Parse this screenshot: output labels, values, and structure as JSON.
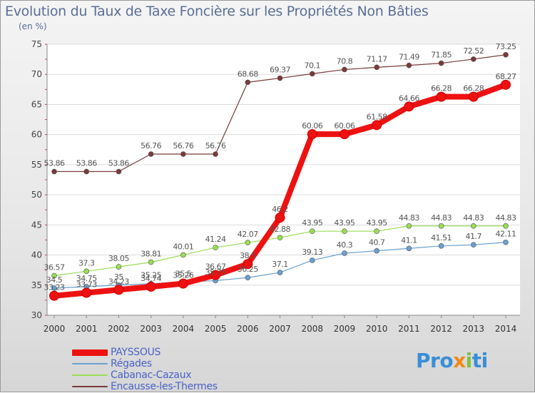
{
  "chart_data": {
    "type": "line",
    "title": "Evolution du Taux de Taxe Foncière sur les Propriétés Non Bâties",
    "subtitle": "(en %)",
    "xlabel": "",
    "ylabel": "",
    "ylim": [
      30,
      75
    ],
    "yticks": [
      30,
      35,
      40,
      45,
      50,
      55,
      60,
      65,
      70,
      75
    ],
    "categories": [
      "2000",
      "2001",
      "2002",
      "2003",
      "2004",
      "2005",
      "2006",
      "2007",
      "2008",
      "2009",
      "2010",
      "2011",
      "2012",
      "2013",
      "2014"
    ],
    "series": [
      {
        "name": "PAYSSOUS",
        "color": "#ee1111",
        "values": [
          33.23,
          33.73,
          34.23,
          34.74,
          35.26,
          36.67,
          38.5,
          46.2,
          60.06,
          60.06,
          61.58,
          64.66,
          66.28,
          66.28,
          68.27
        ],
        "labels": [
          "33.23",
          "33.73",
          "34.23",
          "34.74",
          "35.26",
          "36.67",
          "38.5",
          "46.2",
          "60.06",
          "60.06",
          "61.58",
          "64.66",
          "66.28",
          "66.28",
          "68.27"
        ]
      },
      {
        "name": "Régades",
        "color": "#6aa0d0",
        "values": [
          34.5,
          34.75,
          35.0,
          35.25,
          35.5,
          35.75,
          36.25,
          37.1,
          39.13,
          40.3,
          40.7,
          41.1,
          41.51,
          41.7,
          42.11
        ],
        "labels": [
          "34.5",
          "34.75",
          "35",
          "35.25",
          "35.5",
          "35.75",
          "36.25",
          "37.1",
          "39.13",
          "40.3",
          "40.7",
          "41.1",
          "41.51",
          "41.7",
          "42.11"
        ]
      },
      {
        "name": "Cabanac-Cazaux",
        "color": "#99dd55",
        "values": [
          36.57,
          37.3,
          38.05,
          38.81,
          40.01,
          41.24,
          42.07,
          42.88,
          43.95,
          43.95,
          43.95,
          44.83,
          44.83,
          44.83,
          44.83
        ],
        "labels": [
          "36.57",
          "37.3",
          "38.05",
          "38.81",
          "40.01",
          "41.24",
          "42.07",
          "42.88",
          "43.95",
          "43.95",
          "43.95",
          "44.83",
          "44.83",
          "44.83",
          "44.83"
        ]
      },
      {
        "name": "Encausse-les-Thermes",
        "color": "#7a3a3a",
        "values": [
          53.86,
          53.86,
          53.86,
          56.76,
          56.76,
          56.76,
          68.68,
          69.37,
          70.1,
          70.8,
          71.17,
          71.49,
          71.85,
          72.52,
          73.25
        ],
        "labels": [
          "53.86",
          "53.86",
          "53.86",
          "56.76",
          "56.76",
          "56.76",
          "68.68",
          "69.37",
          "70.1",
          "70.8",
          "71.17",
          "71.49",
          "71.85",
          "72.52",
          "73.25"
        ]
      }
    ],
    "legend_position": "bottom-left"
  },
  "logo": {
    "parts": [
      "Pro",
      "x",
      "i",
      "ti"
    ],
    "colors": [
      "#3a8ed8",
      "#f08a1a",
      "#7dc242",
      "#3a8ed8"
    ]
  }
}
